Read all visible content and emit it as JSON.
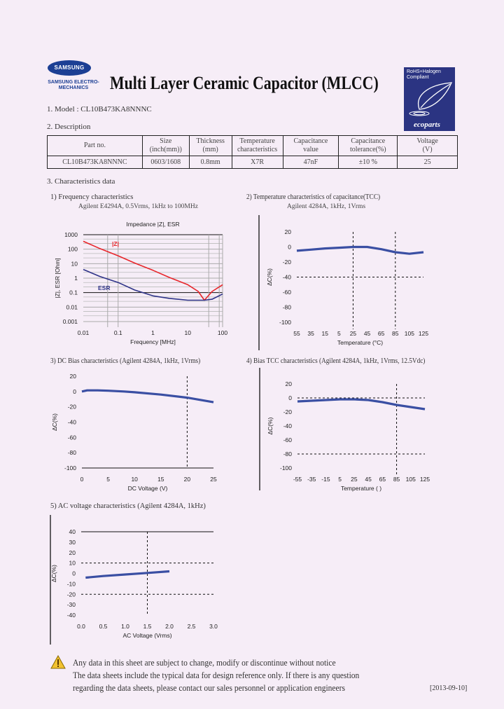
{
  "header": {
    "logo_text": "SAMSUNG",
    "logo_sub": "SAMSUNG ELECTRO-MECHANICS",
    "title": "Multi Layer Ceramic Capacitor (MLCC)",
    "eco_badge": {
      "line1": "RoHS+Halogen",
      "line2": "Compliant",
      "brand": "ecoparts"
    }
  },
  "model": "1. Model : CL10B473KA8NNNC",
  "description_heading": "2. Description",
  "table": {
    "headers": [
      [
        "Part no.",
        ""
      ],
      [
        "Size",
        "(inch(mm))"
      ],
      [
        "Thickness",
        "(mm)"
      ],
      [
        "Temperature",
        "characteristics"
      ],
      [
        "Capacitance",
        "value"
      ],
      [
        "Capacitance",
        "tolerance(%)"
      ],
      [
        "Voltage",
        "(V)"
      ]
    ],
    "row": [
      "CL10B473KA8NNNC",
      "0603/1608",
      "0.8mm",
      "X7R",
      "47nF",
      "±10 %",
      "25"
    ]
  },
  "characteristics_heading": "3. Characteristics data",
  "colors": {
    "curve": "#3a4fa3",
    "z_curve": "#e8262b",
    "esr_curve": "#2e3388",
    "eco_bg": "#2b3482",
    "background": "#f6edf7"
  },
  "chart_data": [
    {
      "type": "line",
      "heading": "1) Frequency characteristics",
      "subheading": "Agilent E4294A, 0.5Vrms, 1kHz to 100MHz",
      "title": "Impedance |Z|, ESR",
      "xlabel": "Frequency [MHz]",
      "ylabel": "|Z|, ESR [Ohm]",
      "xscale": "log",
      "yscale": "log",
      "xlim": [
        0.01,
        100
      ],
      "ylim": [
        0.001,
        1000
      ],
      "xticks": [
        "0.01",
        "0.1",
        "1",
        "10",
        "100"
      ],
      "yticks": [
        "1000",
        "100",
        "10",
        "1",
        "0.1",
        "0.01",
        "0.001"
      ],
      "grid": true,
      "series": [
        {
          "name": "|Z|",
          "color": "#e8262b",
          "x": [
            0.01,
            0.03,
            0.1,
            0.3,
            1,
            3,
            10,
            20,
            30,
            50,
            100
          ],
          "y": [
            350,
            110,
            35,
            11,
            3.5,
            1.1,
            0.35,
            0.12,
            0.03,
            0.12,
            0.35
          ]
        },
        {
          "name": "ESR",
          "color": "#2e3388",
          "x": [
            0.01,
            0.03,
            0.1,
            0.3,
            1,
            3,
            10,
            30,
            50,
            100
          ],
          "y": [
            4,
            1.3,
            0.5,
            0.15,
            0.06,
            0.04,
            0.03,
            0.03,
            0.035,
            0.08
          ]
        }
      ]
    },
    {
      "type": "line",
      "heading": "2) Temperature characteristics of capacitance(TCC)",
      "subheading": "Agilent 4284A, 1kHz, 1Vrms",
      "xlabel": "Temperature (°C)",
      "ylabel": "ΔC(%)",
      "xlim": [
        -55,
        125
      ],
      "ylim": [
        -100,
        20
      ],
      "xticks": [
        "55",
        "35",
        "15",
        "5",
        "25",
        "45",
        "65",
        "85",
        "105",
        "125"
      ],
      "yticks": [
        "20",
        "0",
        "-20",
        "-40",
        "-60",
        "-80",
        "-100"
      ],
      "reference_lines": {
        "x": [
          25,
          85
        ],
        "y": [
          -40
        ]
      },
      "series": [
        {
          "x": [
            -55,
            -35,
            -15,
            5,
            25,
            45,
            65,
            85,
            105,
            125
          ],
          "y": [
            -5,
            -3.5,
            -2,
            -1,
            0,
            0,
            -3,
            -7,
            -9,
            -7
          ]
        }
      ]
    },
    {
      "type": "line",
      "heading": "3) DC Bias characteristics (Agilent 4284A, 1kHz, 1Vrms)",
      "xlabel": "DC Voltage (V)",
      "ylabel": "ΔC(%)",
      "xlim": [
        0,
        25
      ],
      "ylim": [
        -100,
        20
      ],
      "xticks": [
        "0",
        "5",
        "10",
        "15",
        "20",
        "25"
      ],
      "yticks": [
        "20",
        "0",
        "-20",
        "-40",
        "-60",
        "-80",
        "-100"
      ],
      "reference_lines": {
        "x": [
          20
        ],
        "y": []
      },
      "series": [
        {
          "x": [
            0,
            1,
            3,
            5,
            8,
            10,
            15,
            20,
            25
          ],
          "y": [
            0,
            1.5,
            1.5,
            1,
            0,
            -1,
            -4,
            -8,
            -14
          ]
        }
      ]
    },
    {
      "type": "line",
      "heading": "4) Bias TCC characteristics (Agilent 4284A, 1kHz, 1Vrms, 12.5Vdc)",
      "xlabel": "Temperature (   )",
      "ylabel": "ΔC(%)",
      "xlim": [
        -55,
        125
      ],
      "ylim": [
        -100,
        20
      ],
      "xticks": [
        "-55",
        "-35",
        "-15",
        "5",
        "25",
        "45",
        "65",
        "85",
        "105",
        "125"
      ],
      "yticks": [
        "20",
        "0",
        "-20",
        "-40",
        "-60",
        "-80",
        "-100"
      ],
      "reference_lines": {
        "x": [
          85
        ],
        "y": [
          0,
          -80
        ]
      },
      "series": [
        {
          "x": [
            -55,
            -35,
            -15,
            5,
            25,
            45,
            65,
            85,
            105,
            125
          ],
          "y": [
            -5,
            -4,
            -3,
            -2,
            -2,
            -3,
            -6,
            -10,
            -13,
            -16
          ]
        }
      ]
    },
    {
      "type": "line",
      "heading": "5) AC voltage characteristics (Agilent 4284A, 1kHz)",
      "xlabel": "AC Voltage (Vrms)",
      "ylabel": "ΔC(%)",
      "xlim": [
        0,
        3
      ],
      "ylim": [
        -40,
        40
      ],
      "xticks": [
        "0.0",
        "0.5",
        "1.0",
        "1.5",
        "2.0",
        "2.5",
        "3.0"
      ],
      "yticks": [
        "40",
        "30",
        "20",
        "10",
        "0",
        "-10",
        "-20",
        "-30",
        "-40"
      ],
      "reference_lines": {
        "x": [
          1.5
        ],
        "y": [
          10,
          -20
        ]
      },
      "series": [
        {
          "x": [
            0.1,
            0.5,
            1,
            1.5,
            2
          ],
          "y": [
            -4,
            -2.5,
            -1,
            0.5,
            2
          ]
        }
      ]
    }
  ],
  "notice": {
    "line1": "Any data in this sheet are subject to change, modify or discontinue without notice",
    "line2": "The data sheets include the typical data for design reference only. If there is any question",
    "line3": "regarding the data sheets, please contact our sales personnel or application engineers"
  },
  "date": "[2013-09-10]"
}
